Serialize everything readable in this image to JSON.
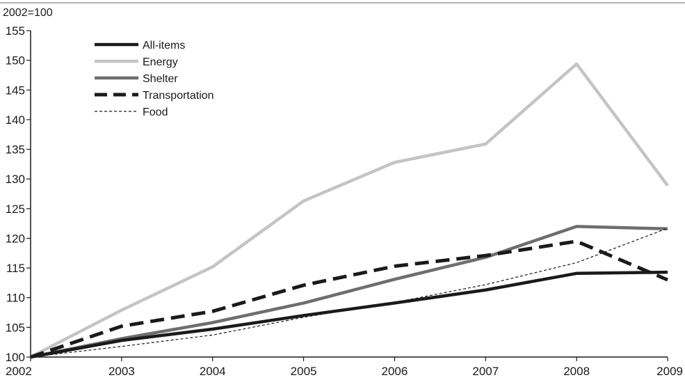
{
  "chart_data": {
    "type": "line",
    "unit_label": "2002=100",
    "x": [
      "2002",
      "2003",
      "2004",
      "2005",
      "2006",
      "2007",
      "2008",
      "2009"
    ],
    "ylim": [
      100,
      155
    ],
    "yticks": [
      "100",
      "105",
      "110",
      "115",
      "120",
      "125",
      "130",
      "135",
      "140",
      "145",
      "150",
      "155"
    ],
    "grid": false,
    "legend_position": "top-left",
    "series": [
      {
        "name": "All-items",
        "color": "#1a1a1a",
        "style": "solid",
        "values": [
          100,
          102.8,
          104.7,
          107.0,
          109.1,
          111.3,
          114.1,
          114.3
        ]
      },
      {
        "name": "Energy",
        "color": "#c4c4c4",
        "style": "solid",
        "values": [
          100,
          107.9,
          115.2,
          126.3,
          132.8,
          135.9,
          149.4,
          128.9
        ]
      },
      {
        "name": "Shelter",
        "color": "#6e6e6e",
        "style": "solid",
        "values": [
          100,
          103.1,
          105.8,
          109.1,
          113.1,
          116.8,
          122.0,
          121.6
        ]
      },
      {
        "name": "Transportation",
        "color": "#1a1a1a",
        "style": "dashed",
        "values": [
          100,
          105.2,
          107.7,
          112.1,
          115.3,
          117.1,
          119.5,
          113.0
        ]
      },
      {
        "name": "Food",
        "color": "#1a1a1a",
        "style": "thin-dashed",
        "values": [
          100,
          101.8,
          103.7,
          106.7,
          109.2,
          112.2,
          115.9,
          121.7
        ]
      }
    ]
  }
}
